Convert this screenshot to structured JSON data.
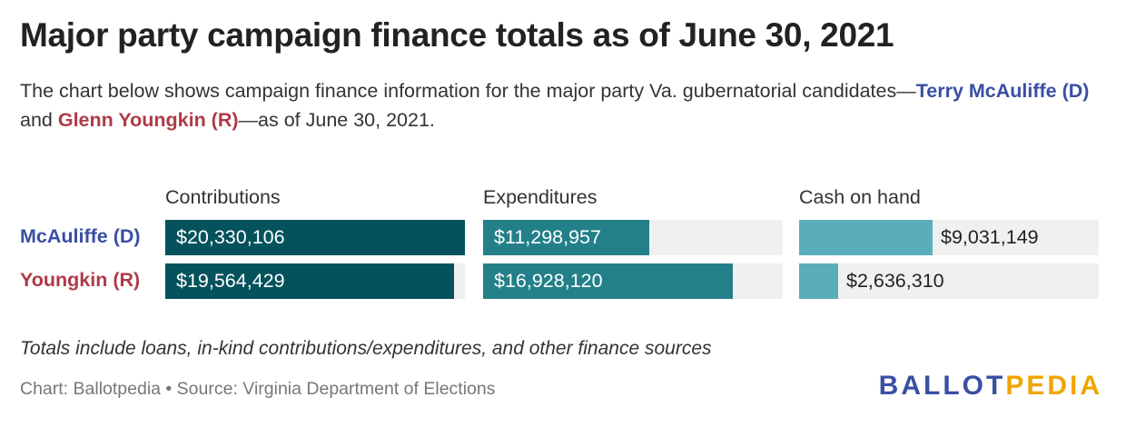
{
  "title": "Major party campaign finance totals as of June 30, 2021",
  "subtitle": {
    "part1": "The chart below shows campaign finance information for the major party Va. gubernatorial candidates—",
    "dem_name": "Terry McAuliffe (D)",
    "part2": " and ",
    "rep_name": "Glenn Youngkin (R)",
    "part3": "—as of June 30, 2021."
  },
  "colors": {
    "dem": "#3a4fa3",
    "rep": "#b03a48",
    "contributions": "#03525c",
    "expenditures": "#238089",
    "cash_on_hand": "#5aaebb",
    "track": "#f0f0f0"
  },
  "chart_data": {
    "type": "bar",
    "orientation": "horizontal",
    "categories": [
      "McAuliffe (D)",
      "Youngkin (R)"
    ],
    "category_colors": [
      "#3a4fa3",
      "#b03a48"
    ],
    "series": [
      {
        "name": "Contributions",
        "values": [
          20330106,
          19564429
        ],
        "labels": [
          "$20,330,106",
          "$19,564,429"
        ],
        "color": "#03525c"
      },
      {
        "name": "Expenditures",
        "values": [
          11298957,
          16928120
        ],
        "labels": [
          "$11,298,957",
          "$16,928,120"
        ],
        "color": "#238089"
      },
      {
        "name": "Cash on hand",
        "values": [
          9031149,
          2636310
        ],
        "labels": [
          "$9,031,149",
          "$2,636,310"
        ],
        "color": "#5aaebb"
      }
    ],
    "shared_max": 20330106
  },
  "note": "Totals include loans, in-kind contributions/expenditures, and other finance sources",
  "source": "Chart: Ballotpedia • Source: Virginia Department of Elections",
  "logo": {
    "part1": "BALLOT",
    "part2": "PEDIA",
    "color1": "#3a4fa3",
    "color2": "#f0a500"
  }
}
